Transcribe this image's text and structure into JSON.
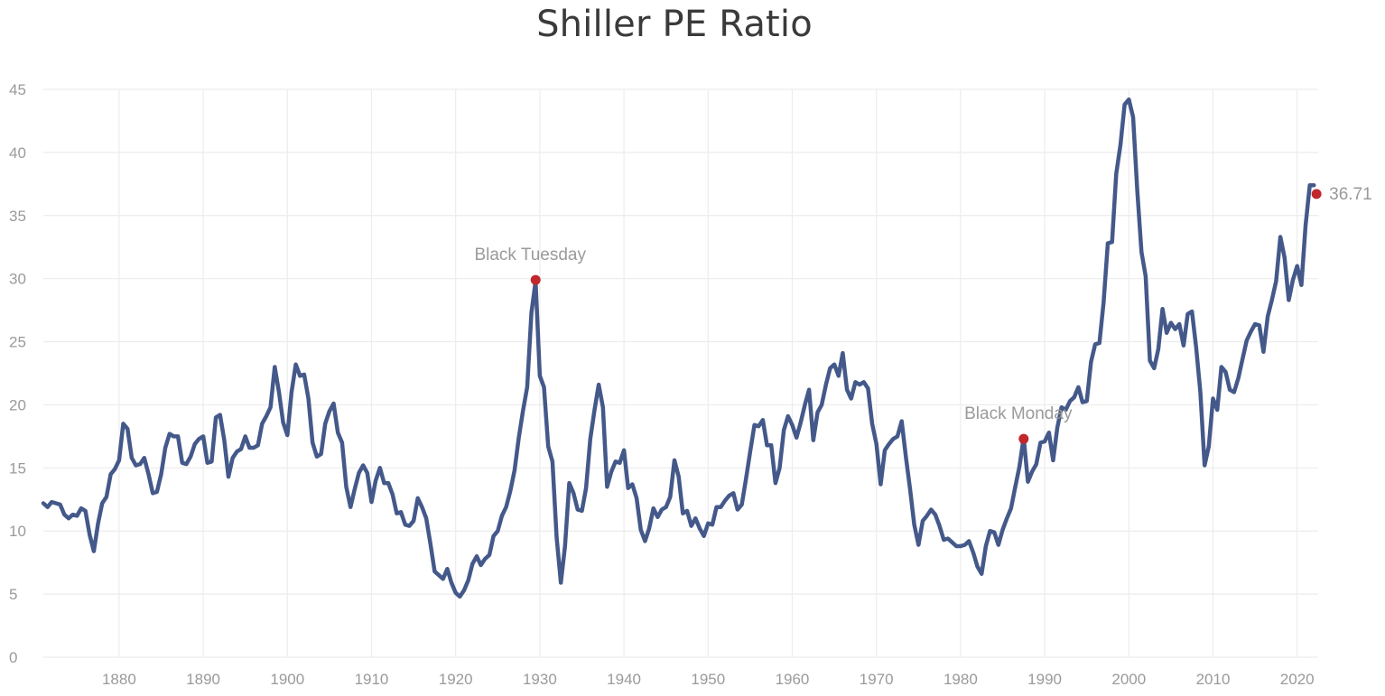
{
  "chart_data": {
    "type": "line",
    "title": "Shiller PE Ratio",
    "xlabel": "",
    "ylabel": "",
    "xlim": [
      1871,
      2022.5
    ],
    "ylim": [
      0,
      45
    ],
    "y_ticks": [
      "0",
      "5",
      "10",
      "15",
      "20",
      "25",
      "30",
      "35",
      "40",
      "45"
    ],
    "x_ticks": [
      "1880",
      "1890",
      "1900",
      "1910",
      "1920",
      "1930",
      "1940",
      "1950",
      "1960",
      "1970",
      "1980",
      "1990",
      "2000",
      "2010",
      "2020"
    ],
    "grid": true,
    "series": [
      {
        "name": "Shiller PE Ratio",
        "color": "#44598a",
        "x": [
          1871.0,
          1871.5,
          1872.0,
          1872.5,
          1873.0,
          1873.5,
          1874.0,
          1874.5,
          1875.0,
          1875.5,
          1876.0,
          1876.5,
          1877.0,
          1877.5,
          1878.0,
          1878.5,
          1879.0,
          1879.5,
          1880.0,
          1880.5,
          1881.0,
          1881.5,
          1882.0,
          1882.5,
          1883.0,
          1883.5,
          1884.0,
          1884.5,
          1885.0,
          1885.5,
          1886.0,
          1886.5,
          1887.0,
          1887.5,
          1888.0,
          1888.5,
          1889.0,
          1889.5,
          1890.0,
          1890.5,
          1891.0,
          1891.5,
          1892.0,
          1892.5,
          1893.0,
          1893.5,
          1894.0,
          1894.5,
          1895.0,
          1895.5,
          1896.0,
          1896.5,
          1897.0,
          1897.5,
          1898.0,
          1898.5,
          1899.0,
          1899.5,
          1900.0,
          1900.5,
          1901.0,
          1901.5,
          1902.0,
          1902.5,
          1903.0,
          1903.5,
          1904.0,
          1904.5,
          1905.0,
          1905.5,
          1906.0,
          1906.5,
          1907.0,
          1907.5,
          1908.0,
          1908.5,
          1909.0,
          1909.5,
          1910.0,
          1910.5,
          1911.0,
          1911.5,
          1912.0,
          1912.5,
          1913.0,
          1913.5,
          1914.0,
          1914.5,
          1915.0,
          1915.5,
          1916.0,
          1916.5,
          1917.0,
          1917.5,
          1918.0,
          1918.5,
          1919.0,
          1919.5,
          1920.0,
          1920.5,
          1921.0,
          1921.5,
          1922.0,
          1922.5,
          1923.0,
          1923.5,
          1924.0,
          1924.5,
          1925.0,
          1925.5,
          1926.0,
          1926.5,
          1927.0,
          1927.5,
          1928.0,
          1928.5,
          1929.0,
          1929.5,
          1930.0,
          1930.5,
          1931.0,
          1931.5,
          1932.0,
          1932.5,
          1933.0,
          1933.5,
          1934.0,
          1934.5,
          1935.0,
          1935.5,
          1936.0,
          1936.5,
          1937.0,
          1937.5,
          1938.0,
          1938.5,
          1939.0,
          1939.5,
          1940.0,
          1940.5,
          1941.0,
          1941.5,
          1942.0,
          1942.5,
          1943.0,
          1943.5,
          1944.0,
          1944.5,
          1945.0,
          1945.5,
          1946.0,
          1946.5,
          1947.0,
          1947.5,
          1948.0,
          1948.5,
          1949.0,
          1949.5,
          1950.0,
          1950.5,
          1951.0,
          1951.5,
          1952.0,
          1952.5,
          1953.0,
          1953.5,
          1954.0,
          1954.5,
          1955.0,
          1955.5,
          1956.0,
          1956.5,
          1957.0,
          1957.5,
          1958.0,
          1958.5,
          1959.0,
          1959.5,
          1960.0,
          1960.5,
          1961.0,
          1961.5,
          1962.0,
          1962.5,
          1963.0,
          1963.5,
          1964.0,
          1964.5,
          1965.0,
          1965.5,
          1966.0,
          1966.5,
          1967.0,
          1967.5,
          1968.0,
          1968.5,
          1969.0,
          1969.5,
          1970.0,
          1970.5,
          1971.0,
          1971.5,
          1972.0,
          1972.5,
          1973.0,
          1973.5,
          1974.0,
          1974.5,
          1975.0,
          1975.5,
          1976.0,
          1976.5,
          1977.0,
          1977.5,
          1978.0,
          1978.5,
          1979.0,
          1979.5,
          1980.0,
          1980.5,
          1981.0,
          1981.5,
          1982.0,
          1982.5,
          1983.0,
          1983.5,
          1984.0,
          1984.5,
          1985.0,
          1985.5,
          1986.0,
          1986.5,
          1987.0,
          1987.5,
          1988.0,
          1988.5,
          1989.0,
          1989.5,
          1990.0,
          1990.5,
          1991.0,
          1991.5,
          1992.0,
          1992.5,
          1993.0,
          1993.5,
          1994.0,
          1994.5,
          1995.0,
          1995.5,
          1996.0,
          1996.5,
          1997.0,
          1997.5,
          1998.0,
          1998.5,
          1999.0,
          1999.5,
          2000.0,
          2000.5,
          2001.0,
          2001.5,
          2002.0,
          2002.5,
          2003.0,
          2003.5,
          2004.0,
          2004.5,
          2005.0,
          2005.5,
          2006.0,
          2006.5,
          2007.0,
          2007.5,
          2008.0,
          2008.5,
          2009.0,
          2009.5,
          2010.0,
          2010.5,
          2011.0,
          2011.5,
          2012.0,
          2012.5,
          2013.0,
          2013.5,
          2014.0,
          2014.5,
          2015.0,
          2015.5,
          2016.0,
          2016.5,
          2017.0,
          2017.5,
          2018.0,
          2018.5,
          2019.0,
          2019.5,
          2020.0,
          2020.5,
          2021.0,
          2021.5,
          2022.0
        ],
        "y": [
          12.2,
          11.9,
          12.3,
          12.2,
          12.1,
          11.3,
          11.0,
          11.3,
          11.2,
          11.8,
          11.6,
          9.7,
          8.4,
          10.6,
          12.2,
          12.7,
          14.5,
          14.9,
          15.6,
          18.5,
          18.1,
          15.8,
          15.2,
          15.3,
          15.8,
          14.5,
          13.0,
          13.1,
          14.5,
          16.6,
          17.7,
          17.5,
          17.5,
          15.4,
          15.3,
          15.9,
          16.9,
          17.3,
          17.5,
          15.4,
          15.5,
          19.0,
          19.2,
          17.2,
          14.3,
          15.8,
          16.3,
          16.5,
          17.5,
          16.6,
          16.6,
          16.8,
          18.5,
          19.1,
          19.8,
          23.0,
          21.0,
          18.6,
          17.6,
          21.0,
          23.2,
          22.3,
          22.4,
          20.5,
          17.0,
          15.9,
          16.1,
          18.5,
          19.5,
          20.1,
          17.8,
          17.0,
          13.5,
          11.9,
          13.3,
          14.6,
          15.2,
          14.6,
          12.3,
          14.0,
          15.0,
          13.8,
          13.8,
          12.9,
          11.4,
          11.5,
          10.5,
          10.4,
          10.8,
          12.6,
          11.9,
          11.0,
          9.0,
          6.8,
          6.5,
          6.2,
          7.0,
          5.9,
          5.1,
          4.8,
          5.3,
          6.1,
          7.4,
          8.0,
          7.3,
          7.8,
          8.1,
          9.6,
          10.0,
          11.2,
          11.9,
          13.2,
          14.8,
          17.4,
          19.5,
          21.4,
          27.3,
          29.8,
          22.3,
          21.4,
          16.7,
          15.5,
          9.5,
          5.9,
          8.8,
          13.8,
          13.0,
          11.7,
          11.6,
          13.4,
          17.3,
          19.6,
          21.6,
          19.8,
          13.5,
          14.7,
          15.5,
          15.4,
          16.4,
          13.4,
          13.7,
          12.6,
          10.1,
          9.2,
          10.2,
          11.8,
          11.1,
          11.7,
          11.9,
          12.7,
          15.6,
          14.3,
          11.4,
          11.6,
          10.4,
          11.0,
          10.2,
          9.6,
          10.6,
          10.5,
          11.9,
          11.9,
          12.4,
          12.8,
          13.0,
          11.7,
          12.1,
          14.1,
          16.3,
          18.4,
          18.3,
          18.8,
          16.8,
          16.8,
          13.8,
          15.0,
          18.0,
          19.1,
          18.4,
          17.4,
          18.6,
          20.0,
          21.2,
          17.2,
          19.4,
          20.0,
          21.6,
          22.9,
          23.2,
          22.3,
          24.1,
          21.2,
          20.5,
          21.8,
          21.6,
          21.8,
          21.3,
          18.5,
          16.9,
          13.7,
          16.4,
          16.9,
          17.3,
          17.5,
          18.7,
          15.9,
          13.3,
          10.5,
          8.9,
          10.8,
          11.2,
          11.7,
          11.3,
          10.4,
          9.3,
          9.4,
          9.1,
          8.8,
          8.8,
          8.9,
          9.2,
          8.3,
          7.2,
          6.6,
          8.8,
          10.0,
          9.9,
          8.9,
          10.1,
          11.0,
          11.8,
          13.5,
          15.1,
          17.4,
          13.9,
          14.7,
          15.3,
          17.0,
          17.1,
          17.8,
          15.6,
          18.2,
          19.8,
          19.6,
          20.3,
          20.6,
          21.4,
          20.2,
          20.3,
          23.4,
          24.8,
          24.9,
          28.1,
          32.8,
          32.9,
          38.3,
          40.6,
          43.8,
          44.2,
          42.8,
          37.0,
          32.1,
          30.2,
          23.5,
          22.9,
          24.4,
          27.6,
          25.7,
          26.5,
          26.0,
          26.4,
          24.7,
          27.2,
          27.4,
          24.5,
          21.0,
          15.2,
          16.7,
          20.5,
          19.6,
          23.0,
          22.6,
          21.2,
          21.0,
          22.1,
          23.6,
          25.1,
          25.8,
          26.4,
          26.3,
          24.2,
          27.0,
          28.3,
          29.8,
          33.3,
          31.7,
          28.3,
          29.9,
          31.0,
          29.5,
          34.2,
          37.4,
          37.4
        ]
      }
    ],
    "annotations": [
      {
        "label": "Black Tuesday",
        "x": 1929.5,
        "y": 29.9
      },
      {
        "label": "Black Monday",
        "x": 1987.5,
        "y": 17.3
      }
    ],
    "latest": {
      "label": "36.71",
      "x": 2022.3,
      "y": 36.71
    }
  }
}
